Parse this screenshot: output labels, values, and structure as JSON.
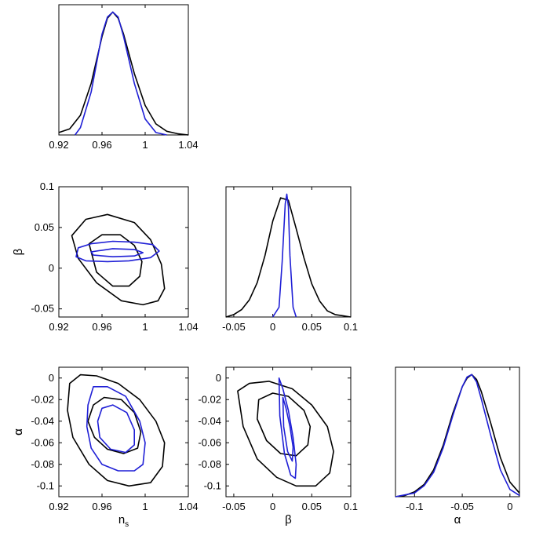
{
  "colors": {
    "black": "#000000",
    "blue": "#1f1fd6"
  },
  "chart_data": [
    {
      "type": "line",
      "panel": "ns-marginal",
      "xlim": [
        0.92,
        1.04
      ],
      "xticks": [
        0.92,
        0.96,
        1,
        1.04
      ],
      "xtick_labels": [
        "0.92",
        "0.96",
        "1",
        "1.04"
      ],
      "xlabel": "",
      "ylabel": "",
      "series": [
        {
          "color": "#000000",
          "x": [
            0.92,
            0.93,
            0.94,
            0.95,
            0.96,
            0.965,
            0.97,
            0.975,
            0.98,
            0.99,
            1.0,
            1.01,
            1.02,
            1.03,
            1.04
          ],
          "y": [
            0.02,
            0.05,
            0.16,
            0.42,
            0.8,
            0.95,
            1.0,
            0.95,
            0.82,
            0.5,
            0.24,
            0.09,
            0.03,
            0.01,
            0.0
          ]
        },
        {
          "color": "#1f1fd6",
          "x": [
            0.935,
            0.94,
            0.95,
            0.96,
            0.965,
            0.97,
            0.975,
            0.98,
            0.99,
            1.0,
            1.01,
            1.02
          ],
          "y": [
            0.0,
            0.06,
            0.35,
            0.82,
            0.96,
            1.0,
            0.96,
            0.8,
            0.42,
            0.13,
            0.02,
            0.0
          ]
        }
      ]
    },
    {
      "type": "line",
      "panel": "beta-marginal",
      "xlim": [
        -0.06,
        0.1
      ],
      "xticks": [
        -0.05,
        0,
        0.05,
        0.1
      ],
      "xtick_labels": [
        "-0.05",
        "0",
        "0.05",
        "0.1"
      ],
      "xlabel": "",
      "ylabel": "",
      "series": [
        {
          "color": "#000000",
          "x": [
            -0.06,
            -0.05,
            -0.04,
            -0.03,
            -0.02,
            -0.01,
            0.0,
            0.01,
            0.02,
            0.03,
            0.04,
            0.05,
            0.06,
            0.07,
            0.08,
            0.09,
            0.1
          ],
          "y": [
            0.0,
            0.02,
            0.06,
            0.14,
            0.28,
            0.5,
            0.78,
            0.97,
            0.95,
            0.72,
            0.48,
            0.27,
            0.13,
            0.05,
            0.02,
            0.01,
            0.0
          ]
        },
        {
          "color": "#1f1fd6",
          "x": [
            0.0,
            0.008,
            0.012,
            0.016,
            0.018,
            0.02,
            0.022,
            0.026,
            0.03
          ],
          "y": [
            0.0,
            0.08,
            0.45,
            0.92,
            1.0,
            0.9,
            0.5,
            0.08,
            0.0
          ]
        }
      ]
    },
    {
      "type": "line",
      "panel": "alpha-marginal",
      "xlim": [
        -0.12,
        0.01
      ],
      "xticks": [
        -0.1,
        -0.05,
        0
      ],
      "xtick_labels": [
        "-0.1",
        "-0.05",
        "0"
      ],
      "xlabel": "α",
      "ylabel": "",
      "series": [
        {
          "color": "#000000",
          "x": [
            -0.12,
            -0.11,
            -0.1,
            -0.09,
            -0.08,
            -0.07,
            -0.06,
            -0.05,
            -0.045,
            -0.04,
            -0.035,
            -0.03,
            -0.02,
            -0.01,
            0.0,
            0.01
          ],
          "y": [
            0.0,
            0.01,
            0.04,
            0.1,
            0.22,
            0.42,
            0.68,
            0.9,
            0.97,
            1.0,
            0.96,
            0.86,
            0.6,
            0.32,
            0.12,
            0.03
          ]
        },
        {
          "color": "#1f1fd6",
          "x": [
            -0.12,
            -0.1,
            -0.09,
            -0.08,
            -0.07,
            -0.06,
            -0.05,
            -0.045,
            -0.04,
            -0.035,
            -0.03,
            -0.02,
            -0.01,
            0.0,
            0.01
          ],
          "y": [
            0.0,
            0.03,
            0.09,
            0.2,
            0.4,
            0.66,
            0.9,
            0.98,
            1.0,
            0.94,
            0.8,
            0.5,
            0.22,
            0.06,
            0.01
          ]
        }
      ]
    },
    {
      "type": "line",
      "panel": "ns-beta-contours",
      "xlim": [
        0.92,
        1.04
      ],
      "ylim": [
        -0.06,
        0.1
      ],
      "xticks": [
        0.92,
        0.96,
        1,
        1.04
      ],
      "xtick_labels": [
        "0.92",
        "0.96",
        "1",
        "1.04"
      ],
      "yticks": [
        -0.05,
        0,
        0.05,
        0.1
      ],
      "ytick_labels": [
        "-0.05",
        "0",
        "0.05",
        "0.1"
      ],
      "xlabel": "",
      "ylabel": "β",
      "series": [
        {
          "color": "#000000",
          "x": [
            0.932,
            0.945,
            0.965,
            0.99,
            1.005,
            1.015,
            1.018,
            1.012,
            0.998,
            0.978,
            0.955,
            0.938,
            0.932
          ],
          "y": [
            0.04,
            0.06,
            0.066,
            0.056,
            0.035,
            0.005,
            -0.025,
            -0.04,
            -0.045,
            -0.04,
            -0.018,
            0.012,
            0.04
          ]
        },
        {
          "color": "#000000",
          "x": [
            0.948,
            0.96,
            0.977,
            0.99,
            0.997,
            0.995,
            0.985,
            0.97,
            0.955,
            0.948
          ],
          "y": [
            0.03,
            0.041,
            0.041,
            0.028,
            0.008,
            -0.01,
            -0.022,
            -0.022,
            -0.005,
            0.03
          ]
        },
        {
          "color": "#1f1fd6",
          "x": [
            0.938,
            0.95,
            0.97,
            0.99,
            1.007,
            1.013,
            1.005,
            0.985,
            0.965,
            0.945,
            0.936,
            0.938
          ],
          "y": [
            0.025,
            0.03,
            0.033,
            0.032,
            0.029,
            0.021,
            0.013,
            0.009,
            0.008,
            0.009,
            0.014,
            0.025
          ]
        },
        {
          "color": "#1f1fd6",
          "x": [
            0.95,
            0.97,
            0.99,
            0.998,
            0.99,
            0.97,
            0.952,
            0.95
          ],
          "y": [
            0.02,
            0.024,
            0.023,
            0.019,
            0.015,
            0.014,
            0.016,
            0.02
          ]
        }
      ]
    },
    {
      "type": "line",
      "panel": "ns-alpha-contours",
      "xlim": [
        0.92,
        1.04
      ],
      "ylim": [
        -0.11,
        0.01
      ],
      "xticks": [
        0.92,
        0.96,
        1,
        1.04
      ],
      "xtick_labels": [
        "0.92",
        "0.96",
        "1",
        "1.04"
      ],
      "yticks": [
        -0.1,
        -0.08,
        -0.06,
        -0.04,
        -0.02,
        0
      ],
      "ytick_labels": [
        "-0.1",
        "-0.08",
        "-0.06",
        "-0.04",
        "-0.02",
        "0"
      ],
      "xlabel": "ns",
      "ylabel": "α",
      "series": [
        {
          "color": "#000000",
          "x": [
            0.93,
            0.94,
            0.955,
            0.975,
            0.995,
            1.01,
            1.018,
            1.016,
            1.005,
            0.985,
            0.965,
            0.948,
            0.933,
            0.928,
            0.93
          ],
          "y": [
            -0.005,
            0.003,
            0.002,
            -0.005,
            -0.02,
            -0.04,
            -0.06,
            -0.082,
            -0.097,
            -0.1,
            -0.095,
            -0.08,
            -0.055,
            -0.03,
            -0.005
          ]
        },
        {
          "color": "#000000",
          "x": [
            0.952,
            0.962,
            0.978,
            0.99,
            0.996,
            0.993,
            0.98,
            0.965,
            0.953,
            0.947,
            0.952
          ],
          "y": [
            -0.025,
            -0.018,
            -0.02,
            -0.032,
            -0.05,
            -0.065,
            -0.07,
            -0.066,
            -0.055,
            -0.04,
            -0.025
          ]
        },
        {
          "color": "#1f1fd6",
          "x": [
            0.952,
            0.965,
            0.982,
            0.995,
            1.0,
            0.998,
            0.99,
            0.975,
            0.96,
            0.95,
            0.946,
            0.947,
            0.952
          ],
          "y": [
            -0.008,
            -0.008,
            -0.017,
            -0.04,
            -0.06,
            -0.08,
            -0.086,
            -0.086,
            -0.08,
            -0.065,
            -0.045,
            -0.025,
            -0.008
          ]
        },
        {
          "color": "#1f1fd6",
          "x": [
            0.96,
            0.97,
            0.983,
            0.99,
            0.99,
            0.982,
            0.968,
            0.958,
            0.956,
            0.96
          ],
          "y": [
            -0.028,
            -0.025,
            -0.032,
            -0.048,
            -0.062,
            -0.069,
            -0.066,
            -0.055,
            -0.04,
            -0.028
          ]
        }
      ]
    },
    {
      "type": "line",
      "panel": "beta-alpha-contours",
      "xlim": [
        -0.06,
        0.1
      ],
      "ylim": [
        -0.11,
        0.01
      ],
      "xticks": [
        -0.05,
        0,
        0.05,
        0.1
      ],
      "xtick_labels": [
        "-0.05",
        "0",
        "0.05",
        "0.1"
      ],
      "yticks": [
        -0.1,
        -0.08,
        -0.06,
        -0.04,
        -0.02,
        0
      ],
      "ytick_labels": [
        "-0.1",
        "-0.08",
        "-0.06",
        "-0.04",
        "-0.02",
        "0"
      ],
      "xlabel": "β",
      "ylabel": "α",
      "series": [
        {
          "color": "#000000",
          "x": [
            -0.045,
            -0.03,
            -0.005,
            0.025,
            0.05,
            0.07,
            0.078,
            0.073,
            0.055,
            0.03,
            0.005,
            -0.02,
            -0.038,
            -0.045
          ],
          "y": [
            -0.012,
            -0.005,
            -0.003,
            -0.01,
            -0.025,
            -0.045,
            -0.068,
            -0.088,
            -0.1,
            -0.1,
            -0.092,
            -0.075,
            -0.045,
            -0.012
          ]
        },
        {
          "color": "#000000",
          "x": [
            -0.018,
            0.0,
            0.02,
            0.04,
            0.048,
            0.045,
            0.03,
            0.01,
            -0.008,
            -0.02,
            -0.018
          ],
          "y": [
            -0.02,
            -0.014,
            -0.017,
            -0.03,
            -0.045,
            -0.062,
            -0.072,
            -0.07,
            -0.058,
            -0.038,
            -0.02
          ]
        },
        {
          "color": "#1f1fd6",
          "x": [
            0.008,
            0.013,
            0.02,
            0.026,
            0.03,
            0.029,
            0.023,
            0.015,
            0.009,
            0.008
          ],
          "y": [
            0.0,
            -0.01,
            -0.03,
            -0.055,
            -0.08,
            -0.093,
            -0.09,
            -0.07,
            -0.035,
            0.0
          ]
        },
        {
          "color": "#1f1fd6",
          "x": [
            0.013,
            0.017,
            0.022,
            0.026,
            0.025,
            0.019,
            0.014,
            0.013
          ],
          "y": [
            -0.018,
            -0.028,
            -0.045,
            -0.064,
            -0.077,
            -0.068,
            -0.045,
            -0.018
          ]
        }
      ]
    }
  ]
}
